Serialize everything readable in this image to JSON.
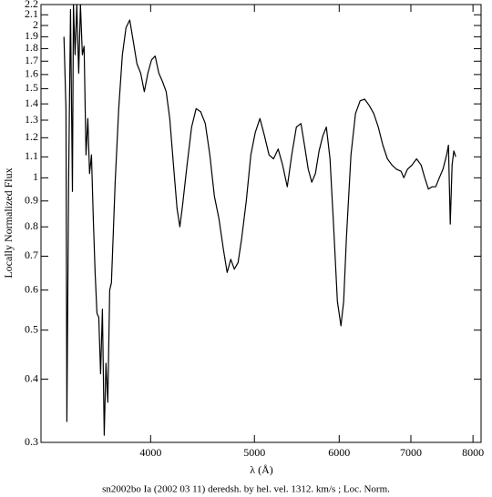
{
  "chart_data": {
    "type": "line",
    "y_label": "Locally Normalized Flux",
    "x_label": "λ (Å)",
    "caption": "sn2002bo Ia (2002 03 11) deredsh. by hel. vel.  1312. km/s ;  Loc. Norm.",
    "xscale": "log",
    "yscale": "log",
    "xlim": [
      3160,
      8140
    ],
    "ylim": [
      0.3,
      2.2
    ],
    "xticks": [
      4000,
      5000,
      6000,
      7000,
      8000
    ],
    "yticks": [
      0.3,
      0.4,
      0.5,
      0.6,
      0.7,
      0.8,
      0.9,
      1,
      1.1,
      1.2,
      1.3,
      1.4,
      1.5,
      1.6,
      1.7,
      1.8,
      1.9,
      2,
      2.1,
      2.2
    ],
    "color": "#000000",
    "x": [
      3320,
      3334,
      3341,
      3353,
      3367,
      3381,
      3388,
      3400,
      3413,
      3427,
      3440,
      3454,
      3467,
      3481,
      3495,
      3508,
      3522,
      3536,
      3550,
      3564,
      3578,
      3592,
      3606,
      3620,
      3634,
      3648,
      3663,
      3677,
      3706,
      3735,
      3764,
      3794,
      3824,
      3854,
      3884,
      3915,
      3946,
      3976,
      4008,
      4039,
      4071,
      4103,
      4136,
      4168,
      4201,
      4234,
      4259,
      4284,
      4326,
      4368,
      4411,
      4455,
      4499,
      4543,
      4588,
      4633,
      4678,
      4715,
      4752,
      4789,
      4827,
      4865,
      4913,
      4962,
      5010,
      5060,
      5110,
      5160,
      5210,
      5262,
      5313,
      5366,
      5418,
      5472,
      5526,
      5569,
      5613,
      5657,
      5701,
      5746,
      5792,
      5837,
      5883,
      5929,
      5976,
      6023,
      6058,
      6094,
      6154,
      6214,
      6276,
      6338,
      6400,
      6463,
      6526,
      6590,
      6655,
      6721,
      6787,
      6854,
      6894,
      6948,
      7017,
      7086,
      7155,
      7212,
      7269,
      7326,
      7384,
      7441,
      7500,
      7559,
      7588,
      7618,
      7648,
      7677,
      7708
    ],
    "values": [
      1.9,
      1.37,
      0.33,
      0.98,
      2.15,
      0.94,
      2.2,
      1.75,
      2.2,
      1.61,
      2.2,
      1.75,
      1.82,
      1.11,
      1.31,
      1.02,
      1.11,
      0.83,
      0.65,
      0.54,
      0.53,
      0.41,
      0.55,
      0.31,
      0.43,
      0.36,
      0.6,
      0.62,
      0.98,
      1.37,
      1.75,
      1.98,
      2.05,
      1.86,
      1.68,
      1.61,
      1.48,
      1.61,
      1.71,
      1.74,
      1.61,
      1.55,
      1.48,
      1.31,
      1.06,
      0.87,
      0.8,
      0.88,
      1.06,
      1.26,
      1.37,
      1.35,
      1.28,
      1.11,
      0.92,
      0.83,
      0.72,
      0.65,
      0.69,
      0.66,
      0.68,
      0.76,
      0.9,
      1.11,
      1.23,
      1.31,
      1.21,
      1.11,
      1.09,
      1.14,
      1.06,
      0.96,
      1.11,
      1.26,
      1.28,
      1.16,
      1.04,
      0.98,
      1.02,
      1.13,
      1.21,
      1.26,
      1.09,
      0.8,
      0.57,
      0.51,
      0.57,
      0.76,
      1.11,
      1.34,
      1.42,
      1.43,
      1.39,
      1.34,
      1.26,
      1.16,
      1.09,
      1.06,
      1.04,
      1.03,
      1.0,
      1.04,
      1.06,
      1.09,
      1.06,
      1.0,
      0.95,
      0.96,
      0.96,
      1.0,
      1.04,
      1.11,
      1.16,
      0.81,
      1.06,
      1.13,
      1.1
    ]
  }
}
